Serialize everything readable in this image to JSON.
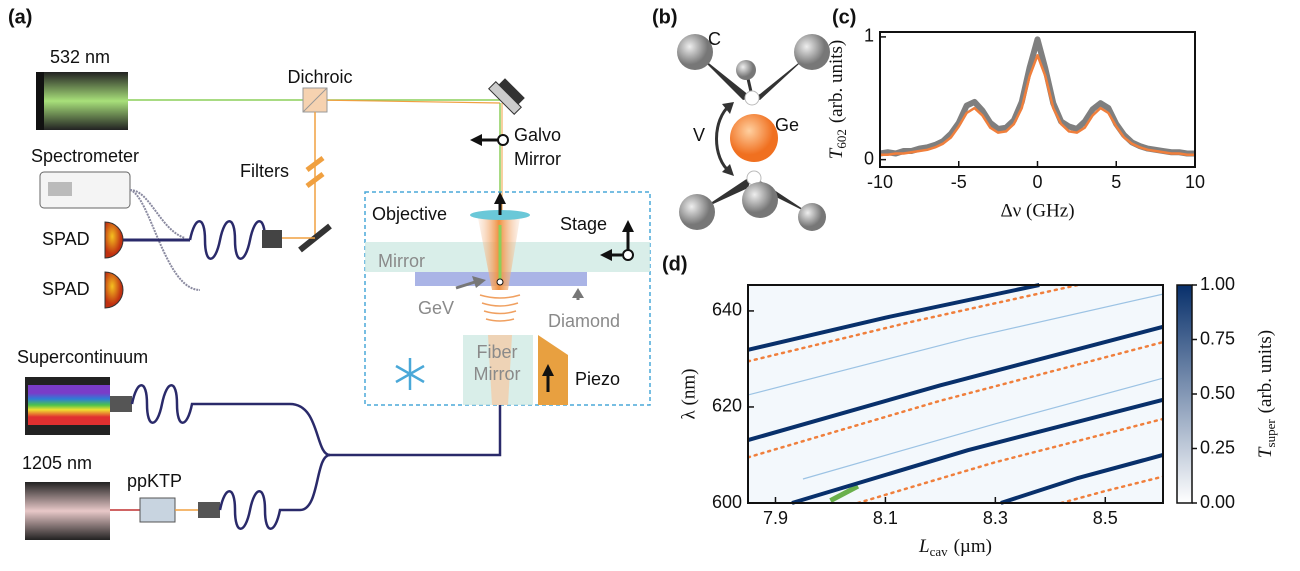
{
  "figure": {
    "panels": {
      "a": "(a)",
      "b": "(b)",
      "c": "(c)",
      "d": "(d)"
    },
    "setup": {
      "laser_532": "532 nm",
      "dichroic": "Dichroic",
      "galvo_1": "Galvo",
      "galvo_2": "Mirror",
      "spectrometer": "Spectrometer",
      "filters": "Filters",
      "objective": "Objective",
      "stage": "Stage",
      "spad_1": "SPAD",
      "spad_2": "SPAD",
      "mirror": "Mirror",
      "gev": "GeV",
      "diamond": "Diamond",
      "fiber_1": "Fiber",
      "fiber_2": "Mirror",
      "piezo": "Piezo",
      "supercontinuum": "Supercontinuum",
      "laser_1205": "1205 nm",
      "ppktp": "ppKTP"
    },
    "defect": {
      "carbon": "C",
      "germanium": "Ge",
      "vacancy": "V"
    }
  },
  "chart_data": [
    {
      "type": "line",
      "xlabel": "Δν (GHz)",
      "ylabel": {
        "symbol": "T",
        "sub": "602",
        "rest": "(arb. units)"
      },
      "xlim": [
        -10,
        10
      ],
      "ylim": [
        -0.06,
        1.04
      ],
      "xticks": [
        -10,
        -5,
        0,
        5,
        10
      ],
      "yticks": [
        0,
        1
      ],
      "x": [
        -10,
        -9.5,
        -9,
        -8.5,
        -8,
        -7.5,
        -7,
        -6.5,
        -6,
        -5.5,
        -5,
        -4.5,
        -4,
        -3.5,
        -3,
        -2.5,
        -2,
        -1.5,
        -1,
        -0.5,
        0,
        0.5,
        1,
        1.5,
        2,
        2.5,
        3,
        3.5,
        4,
        4.5,
        5,
        5.5,
        6,
        6.5,
        7,
        7.5,
        8,
        8.5,
        9,
        9.5,
        10
      ],
      "series": [
        {
          "color": "#7f7f7f",
          "width": 6,
          "style": "solid",
          "values": [
            0.05,
            0.06,
            0.05,
            0.07,
            0.07,
            0.09,
            0.1,
            0.12,
            0.15,
            0.21,
            0.3,
            0.44,
            0.47,
            0.4,
            0.3,
            0.25,
            0.26,
            0.32,
            0.47,
            0.75,
            0.98,
            0.74,
            0.46,
            0.31,
            0.27,
            0.25,
            0.31,
            0.41,
            0.46,
            0.42,
            0.29,
            0.2,
            0.14,
            0.11,
            0.09,
            0.08,
            0.07,
            0.06,
            0.06,
            0.05,
            0.05
          ]
        },
        {
          "color": "#f07f3c",
          "width": 2.5,
          "style": "solid",
          "values": [
            0.04,
            0.04,
            0.05,
            0.05,
            0.06,
            0.07,
            0.08,
            0.1,
            0.13,
            0.18,
            0.27,
            0.38,
            0.42,
            0.36,
            0.26,
            0.22,
            0.23,
            0.29,
            0.42,
            0.68,
            0.85,
            0.68,
            0.42,
            0.29,
            0.23,
            0.22,
            0.26,
            0.36,
            0.42,
            0.38,
            0.27,
            0.18,
            0.13,
            0.1,
            0.08,
            0.07,
            0.06,
            0.05,
            0.05,
            0.04,
            0.04
          ]
        }
      ]
    },
    {
      "type": "line",
      "xlabel": {
        "symbol": "L",
        "sub": "cav",
        "rest": "(µm)"
      },
      "ylabel": "λ (nm)",
      "xlim": [
        7.85,
        8.605
      ],
      "ylim": [
        600,
        645.4
      ],
      "xticks": [
        7.9,
        8.1,
        8.3,
        8.5
      ],
      "yticks": [
        600,
        620,
        640
      ],
      "background": "#f3f8fc",
      "colorbar": {
        "label": {
          "symbol": "T",
          "sub": "super",
          "rest": "(arb. units)"
        },
        "lim": [
          0,
          1
        ],
        "colors": [
          "#ffffff",
          "#08306b"
        ],
        "ticks": [
          {
            "value": 0,
            "label": "0.00"
          },
          {
            "value": 0.25,
            "label": "0.25"
          },
          {
            "value": 0.5,
            "label": "0.50"
          },
          {
            "value": 0.75,
            "label": "0.75"
          },
          {
            "value": 1,
            "label": "1.00"
          }
        ]
      },
      "series": [
        {
          "color": "#9cc3e4",
          "width": 1.2,
          "style": "solid",
          "x": [
            7.85,
            8.25,
            8.605
          ],
          "values": [
            622.5,
            634.3,
            643.5
          ]
        },
        {
          "color": "#9cc3e4",
          "width": 1.2,
          "style": "solid",
          "x": [
            7.95,
            8.3,
            8.605
          ],
          "values": [
            605,
            616.5,
            626
          ]
        },
        {
          "color": "#f07f3c",
          "outline": "#08306b",
          "width": 3,
          "style": "dashed",
          "x": [
            7.85,
            8.1,
            8.38
          ],
          "values": [
            631.9,
            638.6,
            645.4
          ]
        },
        {
          "color": "#f07f3c",
          "outline": "#08306b",
          "width": 3,
          "style": "dashed",
          "x": [
            7.85,
            8.2,
            8.605
          ],
          "values": [
            613.1,
            624.5,
            636.7
          ]
        },
        {
          "color": "#f07f3c",
          "outline": "#08306b",
          "width": 3,
          "style": "dashed",
          "x": [
            7.93,
            8.25,
            8.605
          ],
          "values": [
            600,
            611.0,
            621.5
          ]
        },
        {
          "color": "#f07f3c",
          "outline": "#08306b",
          "width": 3,
          "style": "dashed",
          "x": [
            8.31,
            8.45,
            8.605
          ],
          "values": [
            600,
            605.2,
            610
          ]
        },
        {
          "color": "#f07f3c",
          "width": 2.5,
          "style": "dotted",
          "x": [
            7.85,
            8.15,
            8.45
          ],
          "values": [
            629.5,
            637.8,
            645.4
          ]
        },
        {
          "color": "#f07f3c",
          "width": 2.5,
          "style": "dotted",
          "x": [
            7.85,
            8.2,
            8.605
          ],
          "values": [
            609.5,
            621.3,
            633.5
          ]
        },
        {
          "color": "#f07f3c",
          "width": 2.5,
          "style": "dotted",
          "x": [
            8.05,
            8.3,
            8.605
          ],
          "values": [
            600,
            608.5,
            617.5
          ]
        },
        {
          "color": "#f07f3c",
          "width": 2.5,
          "style": "dotted",
          "x": [
            8.42,
            8.5,
            8.605
          ],
          "values": [
            600,
            602.5,
            605.5
          ]
        },
        {
          "color": "#6ab04c",
          "width": 5,
          "style": "solid",
          "x": [
            8.0,
            8.05
          ],
          "values": [
            600.5,
            603.5
          ]
        }
      ]
    }
  ]
}
